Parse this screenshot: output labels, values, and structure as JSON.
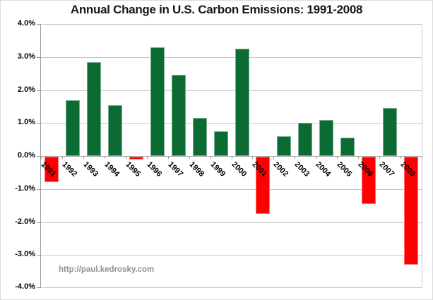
{
  "chart_data": {
    "type": "bar",
    "title": "Annual Change in U.S. Carbon Emissions: 1991-2008",
    "categories": [
      "1991",
      "1992",
      "1993",
      "1994",
      "1995",
      "1996",
      "1997",
      "1998",
      "1999",
      "2000",
      "2001",
      "2002",
      "2003",
      "2004",
      "2005",
      "2006",
      "2007",
      "2008"
    ],
    "values": [
      -0.8,
      1.7,
      2.85,
      1.55,
      -0.1,
      3.3,
      2.45,
      1.15,
      0.75,
      3.25,
      -1.75,
      0.6,
      1.0,
      1.1,
      0.55,
      -1.45,
      1.45,
      -3.3
    ],
    "xlabel": "",
    "ylabel": "",
    "ylim": [
      -4,
      4
    ],
    "y_tick_labels": [
      "4.0%",
      "3.0%",
      "2.0%",
      "1.0%",
      "0.0%",
      "-1.0%",
      "-2.0%",
      "-3.0%",
      "-4.0%"
    ],
    "grid": true,
    "legend": false,
    "positive_color": "#0b6b32",
    "negative_color": "#fe0000",
    "gridline_color": "#c6c6c6",
    "annotation": "http://paul.kedrosky.com"
  }
}
